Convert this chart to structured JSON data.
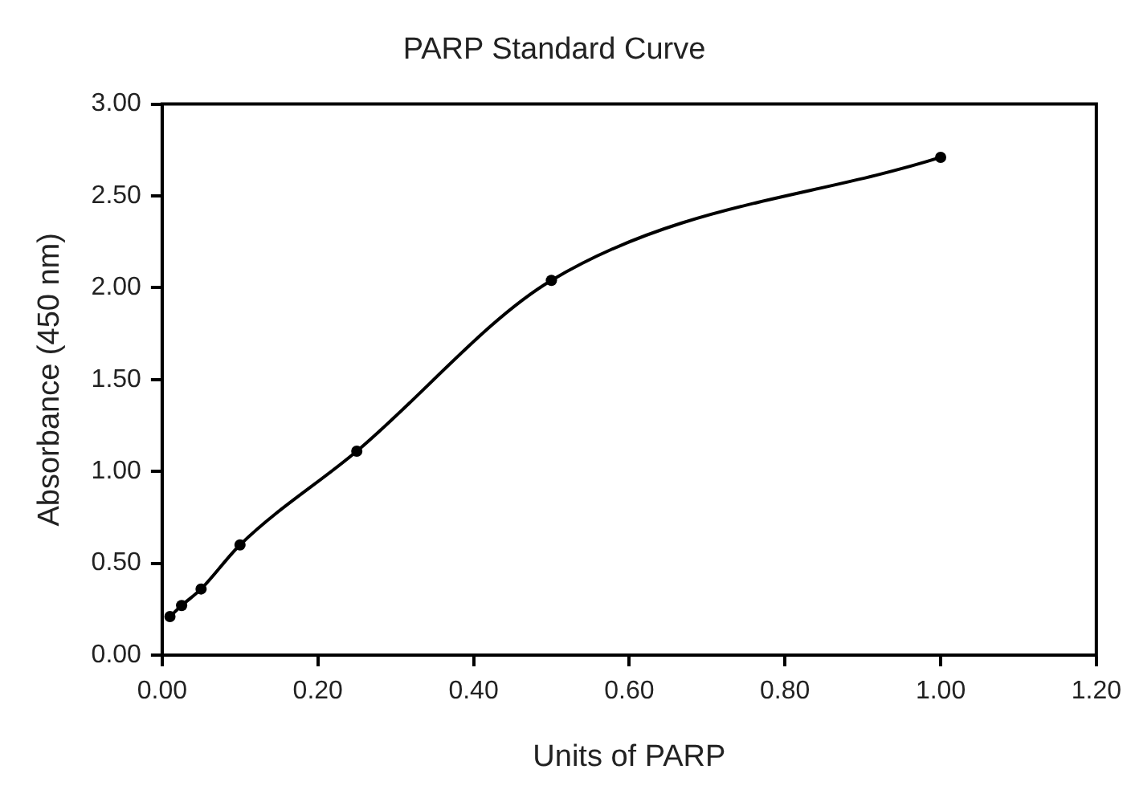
{
  "chart_data": {
    "type": "line",
    "title": "PARP Standard Curve",
    "xlabel": "Units of PARP",
    "ylabel": "Absorbance (450 nm)",
    "x": [
      0.01,
      0.025,
      0.05,
      0.1,
      0.25,
      0.5,
      1.0
    ],
    "series": [
      {
        "color": "#000000",
        "values": [
          0.21,
          0.27,
          0.36,
          0.6,
          1.11,
          2.04,
          2.71
        ]
      }
    ],
    "xlim": [
      0,
      1.2
    ],
    "xticks": [
      {
        "value": 0,
        "label": "0.00"
      },
      {
        "value": 0.2,
        "label": "0.20"
      },
      {
        "value": 0.4,
        "label": "0.40"
      },
      {
        "value": 0.6,
        "label": "0.60"
      },
      {
        "value": 0.8,
        "label": "0.80"
      },
      {
        "value": 1,
        "label": "1.00"
      },
      {
        "value": 1.2,
        "label": "1.20"
      }
    ],
    "ylim": [
      0,
      3
    ],
    "yticks": [
      {
        "value": 0,
        "label": "0.00"
      },
      {
        "value": 0.5,
        "label": "0.50"
      },
      {
        "value": 1,
        "label": "1.00"
      },
      {
        "value": 1.5,
        "label": "1.50"
      },
      {
        "value": 2,
        "label": "2.00"
      },
      {
        "value": 2.5,
        "label": "2.50"
      },
      {
        "value": 3,
        "label": "3.00"
      }
    ],
    "grid": false,
    "legend": false,
    "marker": "circle",
    "line_style": "solid"
  }
}
